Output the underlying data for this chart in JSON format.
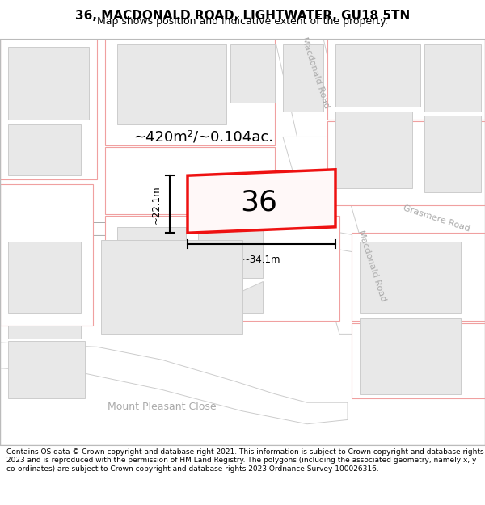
{
  "title": "36, MACDONALD ROAD, LIGHTWATER, GU18 5TN",
  "subtitle": "Map shows position and indicative extent of the property.",
  "footer": "Contains OS data © Crown copyright and database right 2021. This information is subject to Crown copyright and database rights 2023 and is reproduced with the permission of HM Land Registry. The polygons (including the associated geometry, namely x, y co-ordinates) are subject to Crown copyright and database rights 2023 Ordnance Survey 100026316.",
  "area_text": "~420m²/~0.104ac.",
  "label_36": "36",
  "dim_width": "~34.1m",
  "dim_height": "~22.1m",
  "road_label_macdonald_upper": "Macdonald Road",
  "road_label_macdonald_lower": "Macdonald Road",
  "road_label_grasmere": "Grasmere Road",
  "road_label_mount": "Mount Pleasant Close",
  "map_bg": "#f7f6f6",
  "road_fill": "#ffffff",
  "road_edge": "#cccccc",
  "building_fill": "#e8e8e8",
  "building_edge": "#cccccc",
  "plot_outline_color": "#f0a0a0",
  "plot_red": "#ee1111",
  "plot_red_fill": "#fff5f5",
  "title_fontsize": 11,
  "subtitle_fontsize": 9,
  "footer_fontsize": 6.5,
  "label_color_road": "#aaaaaa",
  "dim_color": "#111111"
}
